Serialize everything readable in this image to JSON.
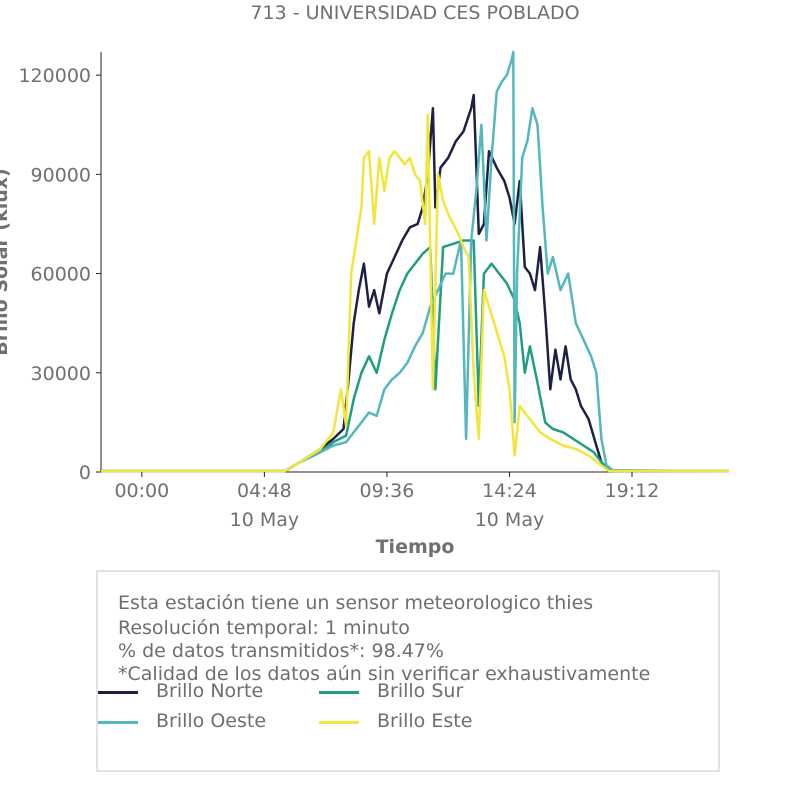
{
  "title": "713 - UNIVERSIDAD CES POBLADO",
  "chart_data": {
    "type": "line",
    "title": "713 - UNIVERSIDAD CES POBLADO",
    "xlabel": "Tiempo",
    "ylabel": "Brillo Solar (klux)",
    "ylim": [
      0,
      127000
    ],
    "xlim_hours": [
      -1.6,
      23.0
    ],
    "x_ticks": [
      {
        "h": 0.0,
        "label": "00:00",
        "sub": ""
      },
      {
        "h": 4.8,
        "label": "04:48",
        "sub": "10 May"
      },
      {
        "h": 9.6,
        "label": "09:36",
        "sub": ""
      },
      {
        "h": 14.4,
        "label": "14:24",
        "sub": "10 May"
      },
      {
        "h": 19.2,
        "label": "19:12",
        "sub": ""
      }
    ],
    "y_ticks": [
      {
        "v": 0,
        "label": "0"
      },
      {
        "v": 30000,
        "label": "30000"
      },
      {
        "v": 60000,
        "label": "60000"
      },
      {
        "v": 90000,
        "label": "90000"
      },
      {
        "v": 120000,
        "label": "120000"
      }
    ],
    "series": [
      {
        "name": "Brillo Norte",
        "color": "#1f2144",
        "points": [
          [
            -1.6,
            300
          ],
          [
            5.6,
            300
          ],
          [
            6.2,
            3000
          ],
          [
            7.0,
            7000
          ],
          [
            7.5,
            10000
          ],
          [
            7.9,
            13000
          ],
          [
            8.1,
            28000
          ],
          [
            8.3,
            45000
          ],
          [
            8.5,
            55000
          ],
          [
            8.7,
            63000
          ],
          [
            8.9,
            50000
          ],
          [
            9.1,
            55000
          ],
          [
            9.3,
            48000
          ],
          [
            9.6,
            60000
          ],
          [
            9.9,
            65000
          ],
          [
            10.2,
            70000
          ],
          [
            10.5,
            74000
          ],
          [
            10.8,
            75000
          ],
          [
            11.0,
            80000
          ],
          [
            11.2,
            90000
          ],
          [
            11.4,
            110000
          ],
          [
            11.5,
            80000
          ],
          [
            11.7,
            92000
          ],
          [
            12.0,
            95000
          ],
          [
            12.3,
            100000
          ],
          [
            12.6,
            103000
          ],
          [
            12.9,
            110000
          ],
          [
            13.0,
            114000
          ],
          [
            13.2,
            72000
          ],
          [
            13.4,
            75000
          ],
          [
            13.6,
            97000
          ],
          [
            13.9,
            92000
          ],
          [
            14.2,
            88000
          ],
          [
            14.4,
            83000
          ],
          [
            14.6,
            75000
          ],
          [
            14.8,
            88000
          ],
          [
            15.0,
            62000
          ],
          [
            15.2,
            60000
          ],
          [
            15.4,
            55000
          ],
          [
            15.6,
            68000
          ],
          [
            15.8,
            48000
          ],
          [
            16.0,
            25000
          ],
          [
            16.2,
            37000
          ],
          [
            16.4,
            28000
          ],
          [
            16.6,
            38000
          ],
          [
            16.8,
            28000
          ],
          [
            17.0,
            25000
          ],
          [
            17.2,
            20000
          ],
          [
            17.5,
            16000
          ],
          [
            17.8,
            8000
          ],
          [
            18.0,
            3000
          ],
          [
            18.3,
            500
          ],
          [
            18.6,
            300
          ],
          [
            23.0,
            300
          ]
        ]
      },
      {
        "name": "Brillo Sur",
        "color": "#229d82",
        "points": [
          [
            -1.6,
            200
          ],
          [
            5.6,
            200
          ],
          [
            6.2,
            3000
          ],
          [
            7.0,
            6000
          ],
          [
            7.5,
            9000
          ],
          [
            8.0,
            11000
          ],
          [
            8.3,
            22000
          ],
          [
            8.6,
            30000
          ],
          [
            8.9,
            35000
          ],
          [
            9.2,
            30000
          ],
          [
            9.5,
            40000
          ],
          [
            9.8,
            48000
          ],
          [
            10.1,
            55000
          ],
          [
            10.4,
            60000
          ],
          [
            10.7,
            63000
          ],
          [
            11.0,
            66000
          ],
          [
            11.3,
            68000
          ],
          [
            11.5,
            25000
          ],
          [
            11.8,
            68000
          ],
          [
            12.2,
            69000
          ],
          [
            12.6,
            70000
          ],
          [
            13.0,
            70000
          ],
          [
            13.2,
            20000
          ],
          [
            13.4,
            60000
          ],
          [
            13.7,
            63000
          ],
          [
            14.0,
            60000
          ],
          [
            14.3,
            57000
          ],
          [
            14.6,
            52000
          ],
          [
            14.8,
            45000
          ],
          [
            15.0,
            30000
          ],
          [
            15.2,
            38000
          ],
          [
            15.5,
            27000
          ],
          [
            15.8,
            15000
          ],
          [
            16.1,
            13000
          ],
          [
            16.5,
            12000
          ],
          [
            16.9,
            10000
          ],
          [
            17.3,
            8000
          ],
          [
            17.7,
            6000
          ],
          [
            18.0,
            3000
          ],
          [
            18.3,
            500
          ],
          [
            23.0,
            200
          ]
        ]
      },
      {
        "name": "Brillo Oeste",
        "color": "#54b7be",
        "points": [
          [
            -1.6,
            200
          ],
          [
            5.6,
            200
          ],
          [
            6.2,
            3000
          ],
          [
            7.0,
            6000
          ],
          [
            7.5,
            8000
          ],
          [
            8.0,
            9000
          ],
          [
            8.3,
            12000
          ],
          [
            8.6,
            15000
          ],
          [
            8.9,
            18000
          ],
          [
            9.2,
            17000
          ],
          [
            9.5,
            25000
          ],
          [
            9.8,
            28000
          ],
          [
            10.1,
            30000
          ],
          [
            10.4,
            33000
          ],
          [
            10.7,
            38000
          ],
          [
            11.0,
            42000
          ],
          [
            11.3,
            50000
          ],
          [
            11.6,
            55000
          ],
          [
            11.9,
            60000
          ],
          [
            12.2,
            60000
          ],
          [
            12.5,
            70000
          ],
          [
            12.7,
            10000
          ],
          [
            12.9,
            70000
          ],
          [
            13.1,
            85000
          ],
          [
            13.3,
            105000
          ],
          [
            13.5,
            70000
          ],
          [
            13.7,
            95000
          ],
          [
            13.9,
            115000
          ],
          [
            14.1,
            118000
          ],
          [
            14.3,
            120000
          ],
          [
            14.5,
            125000
          ],
          [
            14.55,
            127000
          ],
          [
            14.6,
            15000
          ],
          [
            14.7,
            60000
          ],
          [
            14.9,
            95000
          ],
          [
            15.1,
            100000
          ],
          [
            15.3,
            110000
          ],
          [
            15.5,
            105000
          ],
          [
            15.7,
            80000
          ],
          [
            15.9,
            60000
          ],
          [
            16.1,
            65000
          ],
          [
            16.4,
            55000
          ],
          [
            16.7,
            60000
          ],
          [
            17.0,
            45000
          ],
          [
            17.3,
            40000
          ],
          [
            17.6,
            35000
          ],
          [
            17.8,
            30000
          ],
          [
            18.0,
            10000
          ],
          [
            18.2,
            2000
          ],
          [
            18.5,
            300
          ],
          [
            23.0,
            200
          ]
        ]
      },
      {
        "name": "Brillo Este",
        "color": "#f2e53c",
        "points": [
          [
            -1.6,
            300
          ],
          [
            5.6,
            300
          ],
          [
            6.2,
            3000
          ],
          [
            7.0,
            7000
          ],
          [
            7.5,
            12000
          ],
          [
            7.8,
            25000
          ],
          [
            8.0,
            14000
          ],
          [
            8.2,
            60000
          ],
          [
            8.4,
            70000
          ],
          [
            8.6,
            80000
          ],
          [
            8.7,
            95000
          ],
          [
            8.9,
            97000
          ],
          [
            9.1,
            75000
          ],
          [
            9.3,
            95000
          ],
          [
            9.5,
            85000
          ],
          [
            9.7,
            95000
          ],
          [
            9.9,
            97000
          ],
          [
            10.1,
            95000
          ],
          [
            10.3,
            93000
          ],
          [
            10.5,
            95000
          ],
          [
            10.7,
            90000
          ],
          [
            10.9,
            88000
          ],
          [
            11.1,
            75000
          ],
          [
            11.2,
            108000
          ],
          [
            11.4,
            25000
          ],
          [
            11.6,
            90000
          ],
          [
            11.8,
            82000
          ],
          [
            12.0,
            78000
          ],
          [
            12.2,
            75000
          ],
          [
            12.4,
            72000
          ],
          [
            12.6,
            68000
          ],
          [
            12.8,
            65000
          ],
          [
            13.0,
            30000
          ],
          [
            13.2,
            10000
          ],
          [
            13.4,
            55000
          ],
          [
            13.6,
            50000
          ],
          [
            13.8,
            45000
          ],
          [
            14.0,
            40000
          ],
          [
            14.2,
            35000
          ],
          [
            14.4,
            25000
          ],
          [
            14.6,
            5000
          ],
          [
            14.8,
            20000
          ],
          [
            15.0,
            18000
          ],
          [
            15.3,
            15000
          ],
          [
            15.6,
            12000
          ],
          [
            16.0,
            10000
          ],
          [
            16.5,
            8000
          ],
          [
            17.0,
            7000
          ],
          [
            17.5,
            5000
          ],
          [
            18.0,
            2000
          ],
          [
            18.3,
            300
          ],
          [
            23.0,
            300
          ]
        ]
      }
    ]
  },
  "info": {
    "line1": "Esta estación tiene un sensor meteorologico thies",
    "line2": "Resolución temporal: 1 minuto",
    "line3": "% de datos transmitidos*: 98.47%",
    "line4": "*Calidad de los datos aún sin verificar exhaustivamente"
  },
  "legend": [
    {
      "label": "Brillo Norte",
      "color": "#1f2144"
    },
    {
      "label": "Brillo Sur",
      "color": "#229d82"
    },
    {
      "label": "Brillo Oeste",
      "color": "#54b7be"
    },
    {
      "label": "Brillo Este",
      "color": "#f2e53c"
    }
  ]
}
